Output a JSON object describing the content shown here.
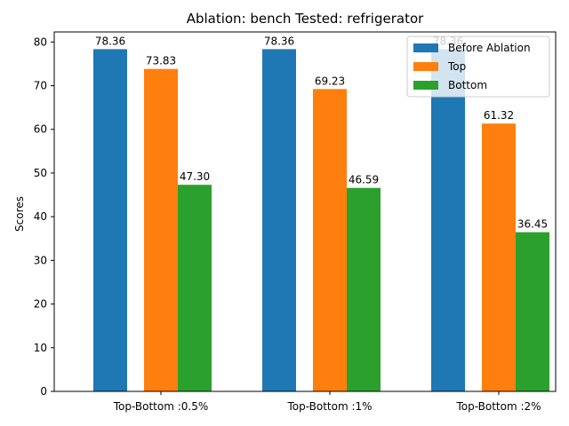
{
  "chart_data": {
    "type": "bar",
    "title": "Ablation: bench Tested: refrigerator",
    "xlabel": "",
    "ylabel": "Scores",
    "ylim": [
      0,
      82.3
    ],
    "yticks": [
      0,
      10,
      20,
      30,
      40,
      50,
      60,
      70,
      80
    ],
    "categories": [
      "Top-Bottom :0.5%",
      "Top-Bottom :1%",
      "Top-Bottom :2%"
    ],
    "series": [
      {
        "name": "Before Ablation",
        "values": [
          78.36,
          78.36,
          78.36
        ],
        "labels": [
          "78.36",
          "78.36",
          "78.36"
        ],
        "color": "#1f77b4"
      },
      {
        "name": "Top",
        "values": [
          73.83,
          69.23,
          61.32
        ],
        "labels": [
          "73.83",
          "69.23",
          "61.32"
        ],
        "color": "#ff7f0e"
      },
      {
        "name": "Bottom",
        "values": [
          47.3,
          46.59,
          36.45
        ],
        "labels": [
          "47.30",
          "46.59",
          "36.45"
        ],
        "color": "#2ca02c"
      }
    ],
    "legend_position": "top-right",
    "grid": false
  }
}
